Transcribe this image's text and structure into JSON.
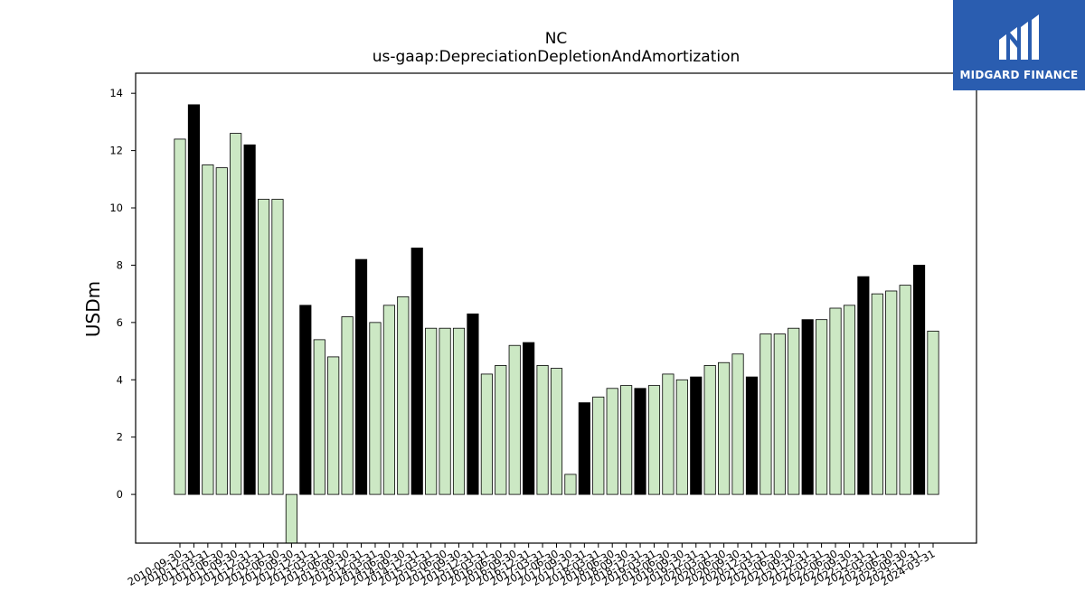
{
  "logo": {
    "text": "MIDGARD FINANCE",
    "icon": "midgard-finance-logo-icon",
    "color": "#2a5db0"
  },
  "chart_data": {
    "type": "bar",
    "title": "NC",
    "subtitle": "us-gaap:DepreciationDepletionAndAmortization",
    "xlabel": "",
    "ylabel": "USDm",
    "ylim": [
      -1.7,
      14.7
    ],
    "yticks": [
      0,
      2,
      4,
      6,
      8,
      10,
      12,
      14
    ],
    "grid": false,
    "colors": {
      "quarter": "#cce8c4",
      "annual": "#000000",
      "edge": "#000000"
    },
    "categories": [
      "2010-09-30",
      "2010-12-31",
      "2011-03-31",
      "2011-06-30",
      "2011-09-30",
      "2011-12-31",
      "2012-03-31",
      "2012-06-30",
      "2012-09-30",
      "2012-12-31",
      "2013-03-31",
      "2013-06-30",
      "2013-09-30",
      "2013-12-31",
      "2014-03-31",
      "2014-06-30",
      "2014-09-30",
      "2014-12-31",
      "2015-03-31",
      "2015-06-30",
      "2015-09-30",
      "2015-12-31",
      "2016-03-31",
      "2016-06-30",
      "2016-09-30",
      "2016-12-31",
      "2017-03-31",
      "2017-06-30",
      "2017-09-30",
      "2017-12-31",
      "2018-03-31",
      "2018-06-30",
      "2018-09-30",
      "2018-12-31",
      "2019-03-31",
      "2019-06-30",
      "2019-09-30",
      "2019-12-31",
      "2020-03-31",
      "2020-06-30",
      "2020-09-30",
      "2020-12-31",
      "2021-03-31",
      "2021-06-30",
      "2021-09-30",
      "2021-12-31",
      "2022-03-31",
      "2022-06-30",
      "2022-09-30",
      "2022-12-31",
      "2023-03-31",
      "2023-06-30",
      "2023-09-30",
      "2023-12-31",
      "2024-03-31"
    ],
    "values": [
      12.4,
      13.6,
      11.5,
      11.4,
      12.6,
      12.2,
      10.3,
      10.3,
      -1.7,
      6.6,
      5.4,
      4.8,
      6.2,
      8.2,
      6.0,
      6.6,
      6.9,
      8.6,
      5.8,
      5.8,
      5.8,
      6.3,
      4.2,
      4.5,
      5.2,
      5.3,
      4.5,
      4.4,
      0.7,
      3.2,
      3.4,
      3.7,
      3.8,
      3.7,
      3.8,
      4.2,
      4.0,
      4.1,
      4.5,
      4.6,
      4.9,
      4.1,
      5.6,
      5.6,
      5.8,
      6.1,
      6.1,
      6.5,
      6.6,
      7.6,
      7.0,
      7.1,
      7.3,
      8.0,
      5.7
    ],
    "highlight": [
      false,
      true,
      false,
      false,
      false,
      true,
      false,
      false,
      false,
      true,
      false,
      false,
      false,
      true,
      false,
      false,
      false,
      true,
      false,
      false,
      false,
      true,
      false,
      false,
      false,
      true,
      false,
      false,
      false,
      true,
      false,
      false,
      false,
      true,
      false,
      false,
      false,
      true,
      false,
      false,
      false,
      true,
      false,
      false,
      false,
      true,
      false,
      false,
      false,
      true,
      false,
      false,
      false,
      true,
      false
    ]
  }
}
